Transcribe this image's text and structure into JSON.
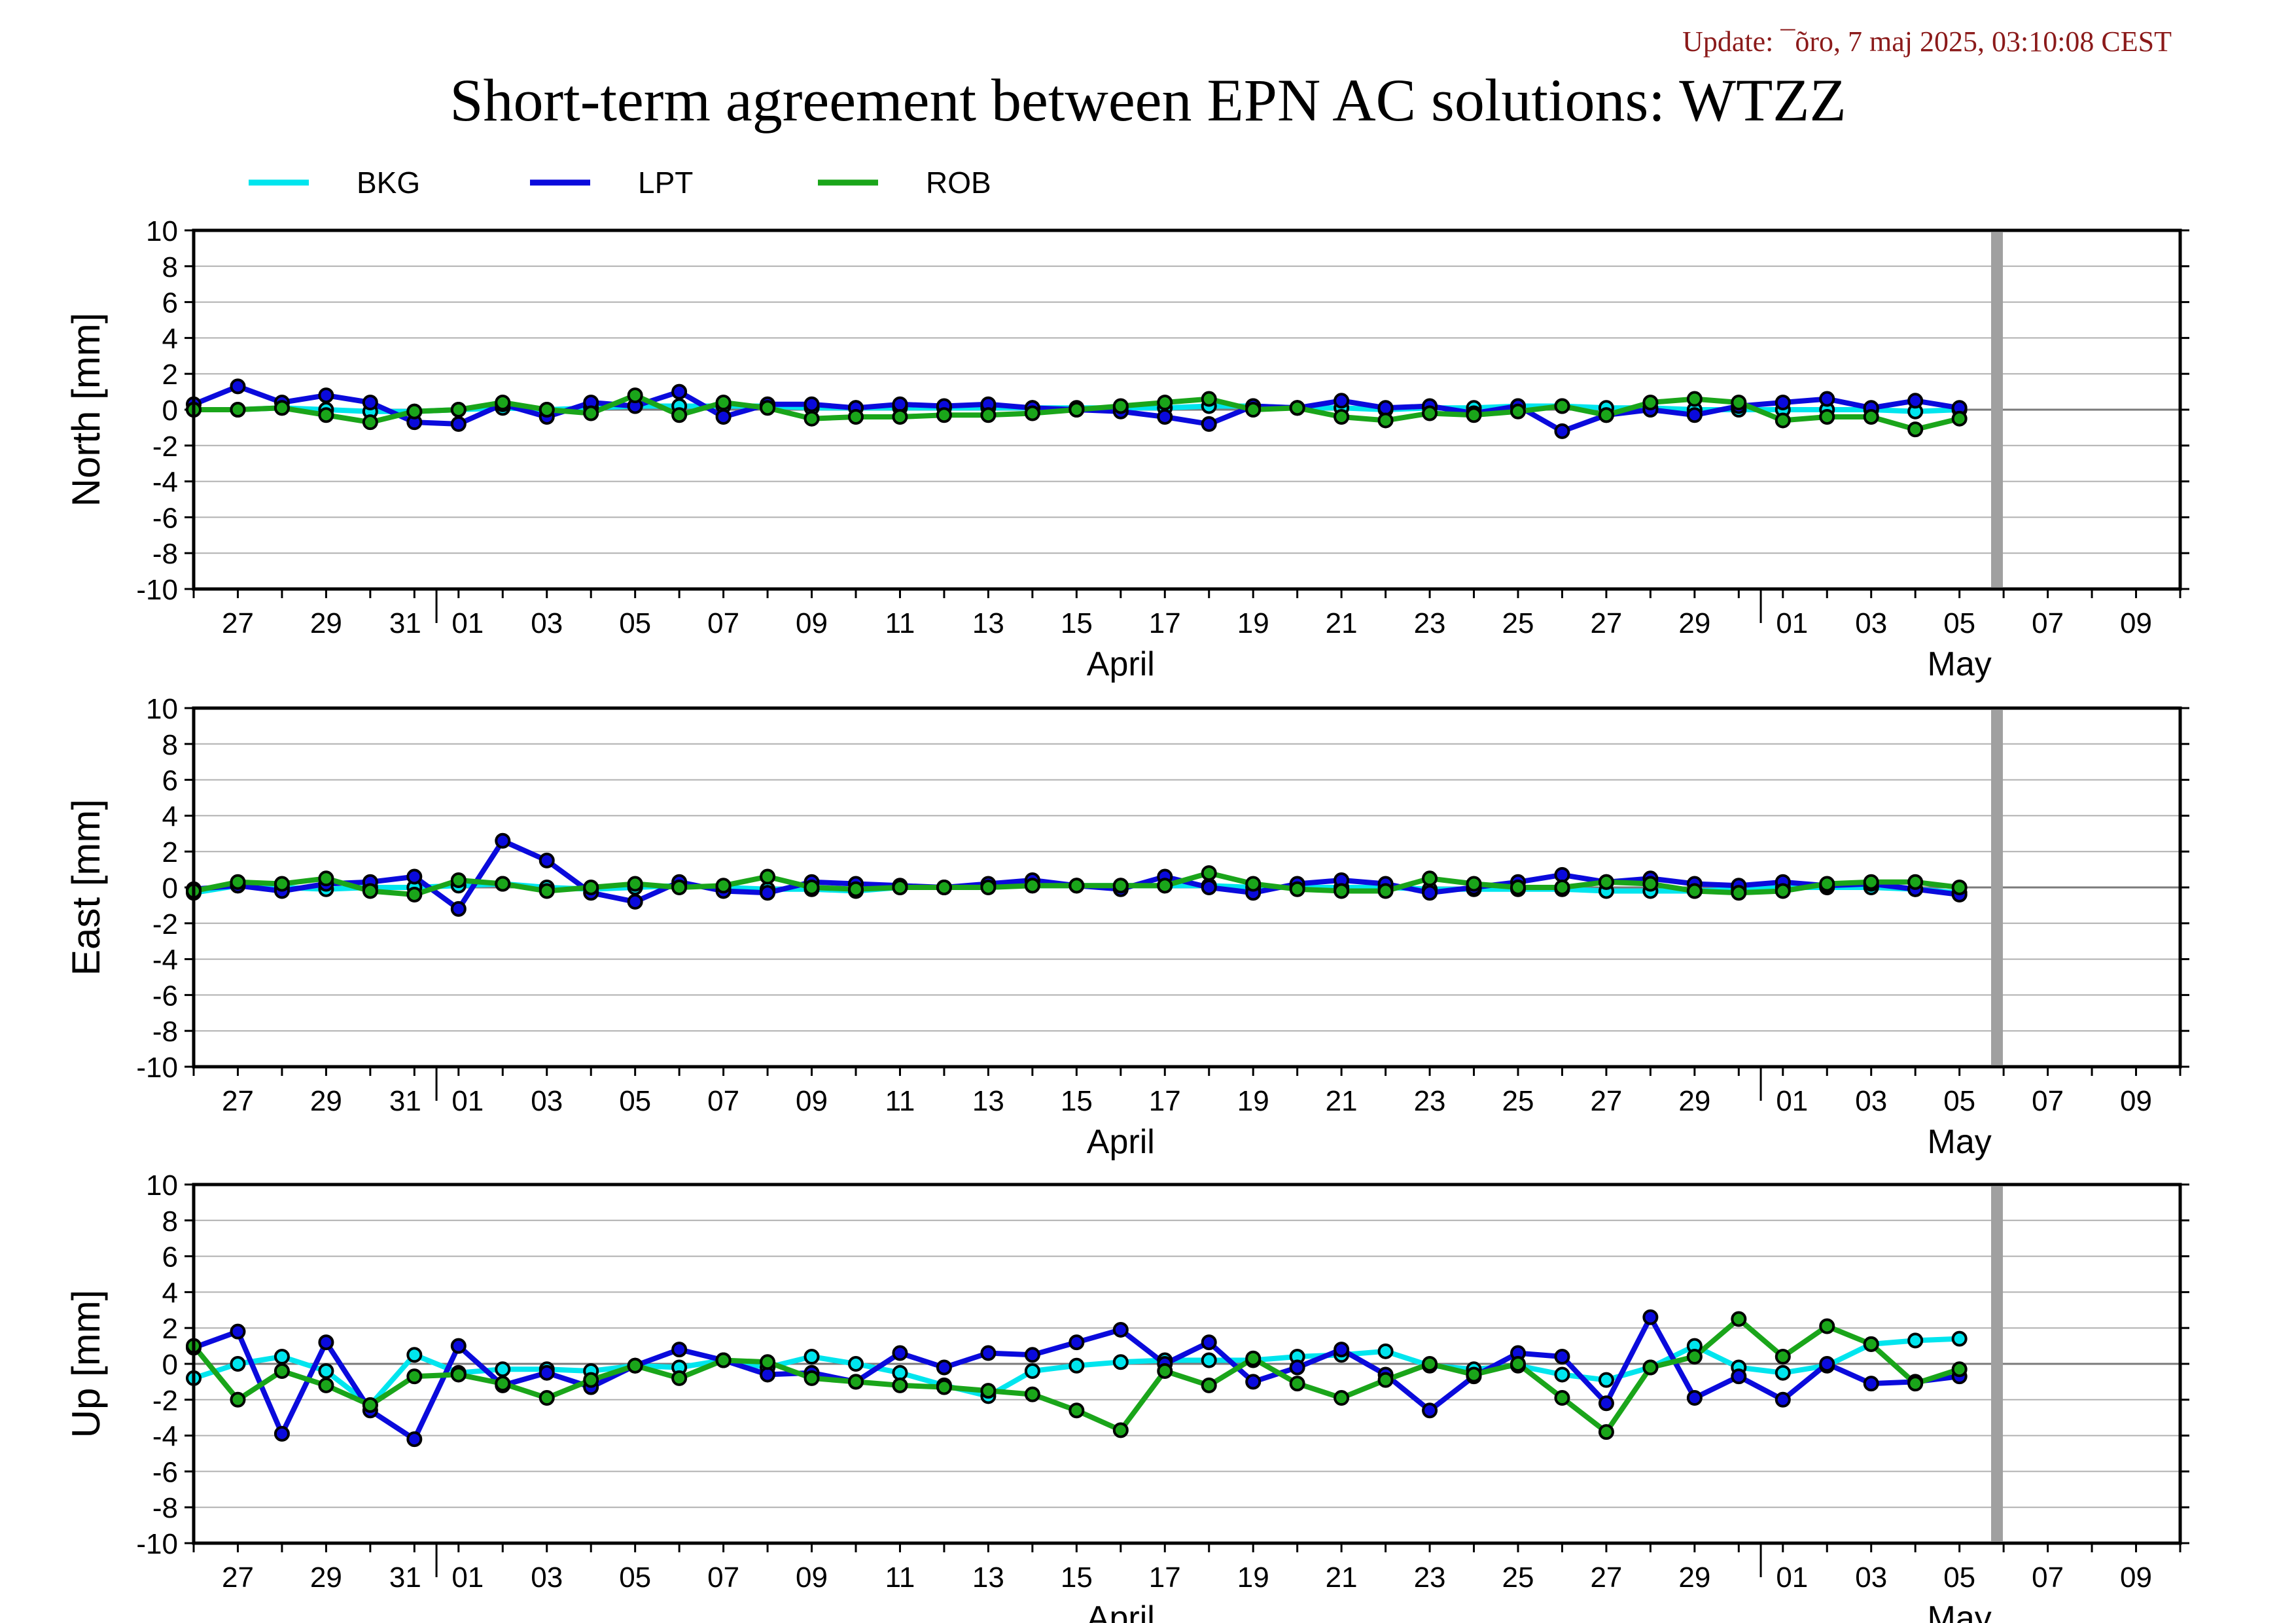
{
  "header": {
    "update": "Update: ¯õro, 7 maj 2025, 03:10:08 CEST",
    "title": "Short-term agreement between EPN AC solutions: WTZZ"
  },
  "colors": {
    "BKG": "#00e5ee",
    "LPT": "#0a0adc",
    "ROB": "#1aa51a",
    "gray_bar": "#a0a0a0"
  },
  "chart_data": {
    "type": "line",
    "title": "Short-term agreement between EPN AC solutions: WTZZ",
    "x_tick_labels": [
      "27",
      "29",
      "31",
      "01",
      "03",
      "05",
      "07",
      "09",
      "11",
      "13",
      "15",
      "17",
      "19",
      "21",
      "23",
      "25",
      "27",
      "29",
      "01",
      "03",
      "05",
      "07",
      "09"
    ],
    "month_labels": [
      "April",
      "May"
    ],
    "x": [
      "03-26",
      "03-27",
      "03-28",
      "03-29",
      "03-30",
      "03-31",
      "04-01",
      "04-02",
      "04-03",
      "04-04",
      "04-05",
      "04-06",
      "04-07",
      "04-08",
      "04-09",
      "04-10",
      "04-11",
      "04-12",
      "04-13",
      "04-14",
      "04-15",
      "04-16",
      "04-17",
      "04-18",
      "04-19",
      "04-20",
      "04-21",
      "04-22",
      "04-23",
      "04-24",
      "04-25",
      "04-26",
      "04-27",
      "04-28",
      "04-29",
      "04-30",
      "05-01",
      "05-02",
      "05-03",
      "05-04",
      "05-05"
    ],
    "xlim": [
      "03-26",
      "05-10"
    ],
    "ylim": [
      -10,
      10
    ],
    "y_tick_labels": [
      "10",
      "8",
      "6",
      "4",
      "2",
      "0",
      "-2",
      "-4",
      "-6",
      "-8",
      "-10"
    ],
    "gray_bar_date": "05-06",
    "grid": true,
    "legend": {
      "placement": "top-left",
      "entries": [
        "BKG",
        "LPT",
        "ROB"
      ]
    },
    "panels": [
      {
        "ylabel": "North [mm]",
        "series": [
          {
            "name": "BKG",
            "values": [
              0.0,
              0.0,
              0.1,
              0.0,
              -0.1,
              -0.1,
              0.0,
              0.1,
              0.0,
              0.1,
              0.2,
              0.2,
              0.2,
              0.2,
              0.1,
              0.1,
              0.1,
              0.1,
              0.1,
              0.1,
              0.1,
              0.1,
              0.1,
              0.2,
              0.2,
              0.1,
              0.1,
              0.0,
              0.1,
              0.1,
              0.2,
              0.2,
              0.1,
              0.1,
              0.0,
              0.0,
              0.0,
              0.0,
              0.0,
              -0.1,
              0.0
            ]
          },
          {
            "name": "LPT",
            "values": [
              0.3,
              1.3,
              0.4,
              0.8,
              0.4,
              -0.7,
              -0.8,
              0.3,
              -0.4,
              0.4,
              0.2,
              1.0,
              -0.4,
              0.3,
              0.3,
              0.1,
              0.3,
              0.2,
              0.3,
              0.1,
              0.0,
              -0.1,
              -0.4,
              -0.8,
              0.2,
              0.1,
              0.5,
              0.1,
              0.2,
              -0.2,
              0.2,
              -1.2,
              -0.3,
              0.0,
              -0.3,
              0.2,
              0.4,
              0.6,
              0.1,
              0.5,
              0.1
            ]
          },
          {
            "name": "ROB",
            "values": [
              0.0,
              0.0,
              0.1,
              -0.3,
              -0.7,
              -0.1,
              0.0,
              0.4,
              0.0,
              -0.2,
              0.8,
              -0.3,
              0.4,
              0.1,
              -0.5,
              -0.4,
              -0.4,
              -0.3,
              -0.3,
              -0.2,
              0.0,
              0.2,
              0.4,
              0.6,
              0.0,
              0.1,
              -0.4,
              -0.6,
              -0.2,
              -0.3,
              -0.1,
              0.2,
              -0.3,
              0.4,
              0.6,
              0.4,
              -0.6,
              -0.4,
              -0.4,
              -1.1,
              -0.5
            ]
          }
        ]
      },
      {
        "ylabel": "East [mm]",
        "series": [
          {
            "name": "BKG",
            "values": [
              -0.3,
              0.1,
              0.0,
              -0.1,
              0.0,
              0.0,
              0.1,
              0.2,
              0.0,
              -0.1,
              0.0,
              0.1,
              0.0,
              -0.1,
              -0.1,
              -0.2,
              0.0,
              0.0,
              0.1,
              0.1,
              0.1,
              0.1,
              0.1,
              0.1,
              0.0,
              0.0,
              0.0,
              0.0,
              -0.1,
              -0.1,
              -0.1,
              -0.1,
              -0.2,
              -0.2,
              -0.2,
              -0.1,
              0.0,
              0.0,
              0.0,
              -0.1,
              -0.3
            ]
          },
          {
            "name": "LPT",
            "values": [
              -0.1,
              0.1,
              -0.2,
              0.2,
              0.3,
              0.6,
              -1.2,
              2.6,
              1.5,
              -0.3,
              -0.8,
              0.3,
              -0.2,
              -0.3,
              0.3,
              0.2,
              0.1,
              0.0,
              0.2,
              0.4,
              0.1,
              -0.1,
              0.6,
              0.0,
              -0.3,
              0.2,
              0.4,
              0.2,
              -0.3,
              0.0,
              0.3,
              0.7,
              0.3,
              0.5,
              0.2,
              0.1,
              0.3,
              0.1,
              0.2,
              -0.1,
              -0.4
            ]
          },
          {
            "name": "ROB",
            "values": [
              -0.2,
              0.3,
              0.2,
              0.5,
              -0.2,
              -0.4,
              0.4,
              0.2,
              -0.2,
              0.0,
              0.2,
              0.0,
              0.1,
              0.6,
              0.0,
              -0.1,
              0.0,
              0.0,
              0.0,
              0.1,
              0.1,
              0.1,
              0.1,
              0.8,
              0.2,
              -0.1,
              -0.2,
              -0.2,
              0.5,
              0.2,
              0.0,
              0.0,
              0.3,
              0.2,
              -0.2,
              -0.3,
              -0.2,
              0.2,
              0.3,
              0.3,
              0.0
            ]
          }
        ]
      },
      {
        "ylabel": "Up [mm]",
        "series": [
          {
            "name": "BKG",
            "values": [
              -0.8,
              0.0,
              0.4,
              -0.4,
              -2.3,
              0.5,
              -0.5,
              -0.3,
              -0.3,
              -0.4,
              -0.1,
              -0.2,
              0.2,
              -0.2,
              0.4,
              0.0,
              -0.5,
              -1.2,
              -1.8,
              -0.4,
              -0.1,
              0.1,
              0.2,
              0.2,
              0.2,
              0.4,
              0.5,
              0.7,
              -0.1,
              -0.3,
              -0.1,
              -0.6,
              -0.9,
              -0.2,
              1.0,
              -0.2,
              -0.5,
              -0.1,
              1.1,
              1.3,
              1.4
            ]
          },
          {
            "name": "LPT",
            "values": [
              0.9,
              1.8,
              -3.9,
              1.2,
              -2.6,
              -4.2,
              1.0,
              -1.2,
              -0.5,
              -1.3,
              -0.1,
              0.8,
              0.2,
              -0.6,
              -0.5,
              -1.0,
              0.6,
              -0.2,
              0.6,
              0.5,
              1.2,
              1.9,
              0.0,
              1.2,
              -1.0,
              -0.2,
              0.8,
              -0.6,
              -2.6,
              -0.7,
              0.6,
              0.4,
              -2.2,
              2.6,
              -1.9,
              -0.7,
              -2.0,
              0.0,
              -1.1,
              -1.0,
              -0.7
            ]
          },
          {
            "name": "ROB",
            "values": [
              1.0,
              -2.0,
              -0.4,
              -1.2,
              -2.3,
              -0.7,
              -0.6,
              -1.1,
              -1.9,
              -0.9,
              -0.1,
              -0.8,
              0.2,
              0.1,
              -0.8,
              -1.0,
              -1.2,
              -1.3,
              -1.5,
              -1.7,
              -2.6,
              -3.7,
              -0.4,
              -1.2,
              0.3,
              -1.1,
              -1.9,
              -0.9,
              0.0,
              -0.6,
              0.0,
              -1.9,
              -3.8,
              -0.2,
              0.4,
              2.5,
              0.4,
              2.1,
              1.1,
              -1.1,
              -0.3
            ]
          }
        ]
      }
    ]
  }
}
